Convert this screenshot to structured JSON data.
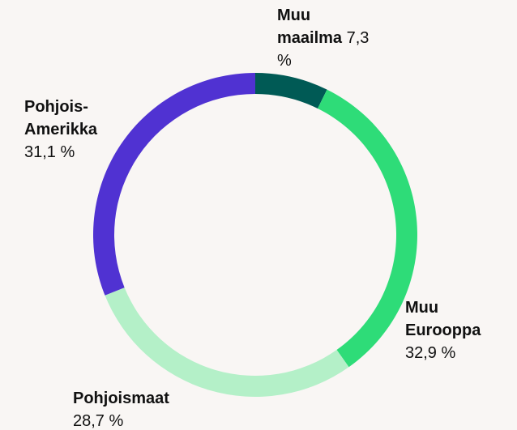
{
  "chart_data": {
    "type": "donut",
    "categories": [
      "Muu maailma",
      "Muu Eurooppa",
      "Pohjoismaat",
      "Pohjois-Amerikka"
    ],
    "values": [
      7.3,
      32.9,
      28.7,
      31.1
    ],
    "value_labels": [
      "7,3 %",
      "32,9 %",
      "28,7 %",
      "31,1 %"
    ],
    "colors": [
      "#005a55",
      "#2edc78",
      "#b4f0c8",
      "#5032d2"
    ]
  }
}
